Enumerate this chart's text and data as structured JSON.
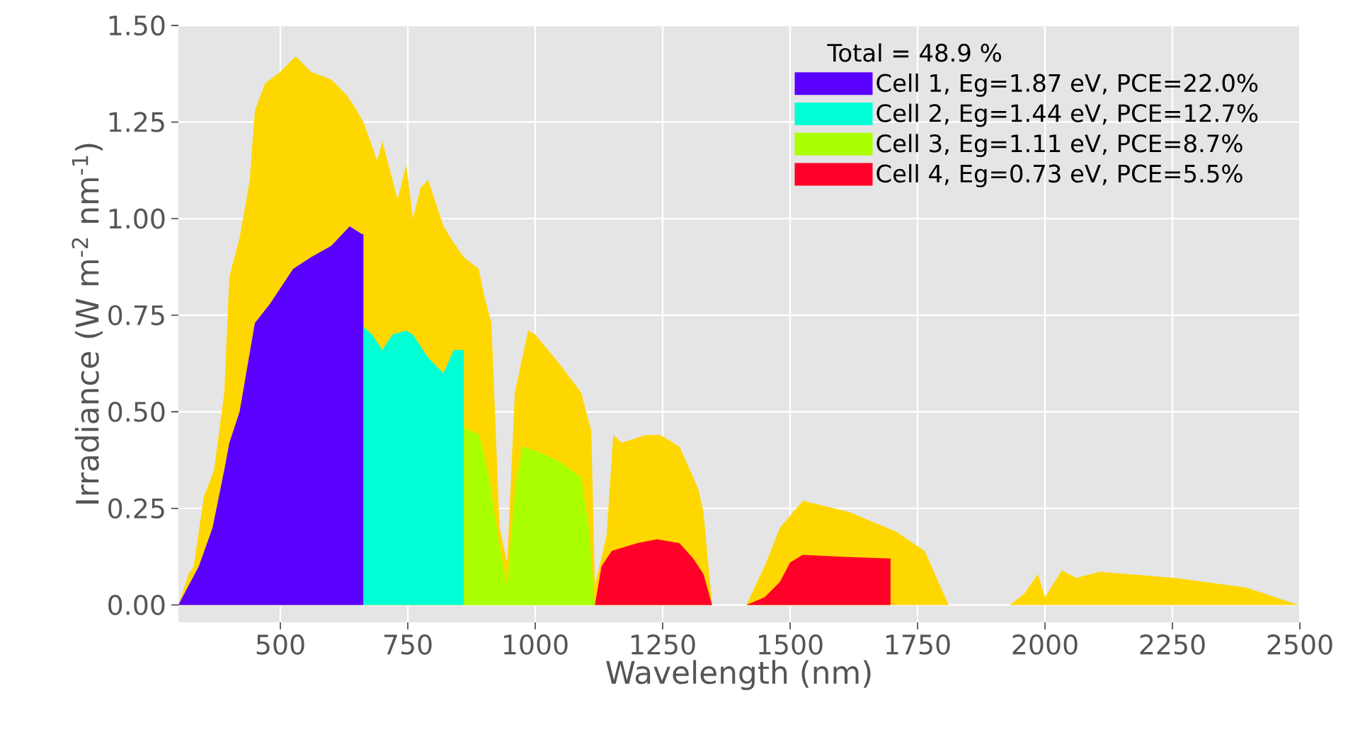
{
  "chart_data": {
    "type": "area",
    "xlabel": "Wavelength (nm)",
    "ylabel": "Irradiance  (W m$^{-2}$ nm$^{-1}$)",
    "legend_title": "Total = 48.9 %",
    "xlim": [
      300,
      2500
    ],
    "ylim": [
      -0.045,
      1.5
    ],
    "xticks": [
      500,
      750,
      1000,
      1250,
      1500,
      1750,
      2000,
      2250,
      2500
    ],
    "yticks": [
      {
        "value": 0,
        "label": "0.00"
      },
      {
        "value": 0.25,
        "label": "0.25"
      },
      {
        "value": 0.5,
        "label": "0.50"
      },
      {
        "value": 0.75,
        "label": "0.75"
      },
      {
        "value": 1,
        "label": "1.00"
      },
      {
        "value": 1.25,
        "label": "1.25"
      },
      {
        "value": 1.5,
        "label": "1.50"
      }
    ],
    "grid": true,
    "legend": "top right",
    "series": [
      {
        "color": "#ffd700",
        "x": [
          300,
          320,
          330,
          350,
          370,
          390,
          400,
          420,
          440,
          450,
          470,
          500,
          530,
          560,
          600,
          630,
          650,
          663,
          690,
          700,
          720,
          730,
          747,
          760,
          775,
          790,
          820,
          839,
          860,
          889,
          900,
          914,
          930,
          945,
          960,
          986,
          1000,
          1050,
          1090,
          1110,
          1117,
          1140,
          1153,
          1170,
          1217,
          1245,
          1283,
          1320,
          1330,
          1347,
          1414,
          1450,
          1480,
          1525,
          1617,
          1708,
          1764,
          1811,
          1931,
          1960,
          1986,
          2000,
          2033,
          2061,
          2108,
          2256,
          2394,
          2486,
          2500
        ],
        "values": [
          0,
          0.08,
          0.1,
          0.28,
          0.35,
          0.55,
          0.85,
          0.95,
          1.1,
          1.28,
          1.35,
          1.38,
          1.42,
          1.38,
          1.36,
          1.32,
          1.28,
          1.25,
          1.15,
          1.2,
          1.1,
          1.05,
          1.14,
          1.0,
          1.08,
          1.1,
          0.98,
          0.94,
          0.9,
          0.87,
          0.8,
          0.73,
          0.2,
          0.11,
          0.55,
          0.71,
          0.7,
          0.62,
          0.55,
          0.45,
          0.05,
          0.18,
          0.44,
          0.42,
          0.44,
          0.44,
          0.41,
          0.3,
          0.24,
          0,
          0,
          0.1,
          0.2,
          0.27,
          0.24,
          0.19,
          0.14,
          0,
          0,
          0.03,
          0.08,
          0.02,
          0.09,
          0.07,
          0.086,
          0.07,
          0.045,
          0.005,
          0
        ]
      },
      {
        "name": "Cell 1, Eg=1.87 eV, PCE=22.0%",
        "color": "#5a00ff",
        "x": [
          300,
          320,
          340,
          367,
          390,
          400,
          420,
          450,
          480,
          525,
          560,
          600,
          636,
          660,
          663
        ],
        "values": [
          0,
          0.05,
          0.1,
          0.2,
          0.35,
          0.42,
          0.5,
          0.73,
          0.78,
          0.87,
          0.9,
          0.93,
          0.98,
          0.96,
          0.96
        ]
      },
      {
        "name": "Cell 2, Eg=1.44 eV, PCE=12.7%",
        "color": "#00ffd5",
        "x": [
          663,
          680,
          700,
          720,
          747,
          760,
          790,
          820,
          840,
          860
        ],
        "values": [
          0.72,
          0.7,
          0.66,
          0.7,
          0.71,
          0.7,
          0.64,
          0.6,
          0.66,
          0.66
        ]
      },
      {
        "name": "Cell 3, Eg=1.11 eV, PCE=8.7%",
        "color": "#aaff00",
        "x": [
          860,
          890,
          910,
          930,
          945,
          960,
          975,
          1000,
          1050,
          1090,
          1105,
          1117
        ],
        "values": [
          0.46,
          0.44,
          0.33,
          0.15,
          0.05,
          0.3,
          0.41,
          0.4,
          0.37,
          0.33,
          0.2,
          0.0
        ]
      },
      {
        "name": "Cell 4, Eg=0.73 eV, PCE=5.5%",
        "color": "#ff0028",
        "x": [
          1117,
          1130,
          1150,
          1200,
          1239,
          1283,
          1310,
          1330,
          1347,
          1414,
          1450,
          1480,
          1500,
          1525,
          1600,
          1697
        ],
        "values": [
          0,
          0.1,
          0.14,
          0.16,
          0.17,
          0.16,
          0.12,
          0.08,
          0,
          0,
          0.02,
          0.06,
          0.11,
          0.13,
          0.125,
          0.12
        ]
      }
    ]
  }
}
